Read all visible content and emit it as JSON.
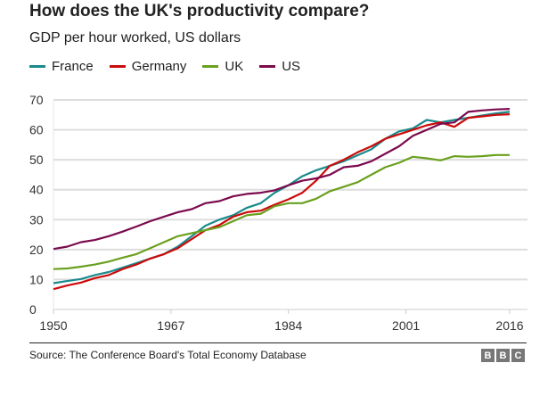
{
  "chart_data": {
    "type": "line",
    "title": "How does the UK's productivity compare?",
    "subtitle": "GDP per hour worked, US dollars",
    "xlabel": "",
    "ylabel": "",
    "xlim": [
      1950,
      2016
    ],
    "ylim": [
      0,
      70
    ],
    "xticks": [
      "1950",
      "1967",
      "1984",
      "2001",
      "2016"
    ],
    "yticks": [
      "0",
      "10",
      "20",
      "30",
      "40",
      "50",
      "60",
      "70"
    ],
    "grid": true,
    "legend": "top-left",
    "x": [
      1950,
      1952,
      1954,
      1956,
      1958,
      1960,
      1962,
      1964,
      1966,
      1968,
      1970,
      1972,
      1974,
      1976,
      1978,
      1980,
      1982,
      1984,
      1986,
      1988,
      1990,
      1992,
      1994,
      1996,
      1998,
      2000,
      2002,
      2004,
      2006,
      2008,
      2010,
      2012,
      2014,
      2016
    ],
    "series": [
      {
        "name": "France",
        "color": "#1a8a8c",
        "values": [
          8.8,
          9.5,
          10.2,
          11.5,
          12.5,
          14,
          15.5,
          17,
          18.5,
          21,
          24.5,
          28,
          30,
          31.5,
          34,
          35.5,
          39,
          41.5,
          44.5,
          46.5,
          48,
          49.5,
          51.5,
          53.5,
          57,
          59.5,
          60.5,
          63.3,
          62.5,
          63.3,
          64,
          64.8,
          65.5,
          66
        ]
      },
      {
        "name": "Germany",
        "color": "#cc0a0a",
        "values": [
          6.8,
          8,
          9,
          10.5,
          11.5,
          13.5,
          15,
          17,
          18.5,
          20.5,
          23.5,
          26.5,
          28.2,
          31,
          32.5,
          33,
          35,
          36.8,
          39,
          43,
          48,
          50,
          52.5,
          54.5,
          57,
          58.5,
          60,
          61.5,
          62.5,
          61,
          64,
          64.5,
          65,
          65.2
        ]
      },
      {
        "name": "UK",
        "color": "#6aa01e",
        "values": [
          13.5,
          13.7,
          14.3,
          15,
          16,
          17.3,
          18.5,
          20.5,
          22.5,
          24.5,
          25.5,
          26.5,
          27.5,
          29.5,
          31.5,
          32,
          34.5,
          35.5,
          35.5,
          37,
          39.5,
          41,
          42.5,
          45,
          47.5,
          49,
          51,
          50.5,
          49.8,
          51.2,
          51,
          51.2,
          51.6,
          51.6
        ]
      },
      {
        "name": "US",
        "color": "#7b0a4e",
        "values": [
          20.2,
          21,
          22.5,
          23.2,
          24.5,
          26,
          27.7,
          29.5,
          31,
          32.5,
          33.5,
          35.5,
          36.2,
          37.8,
          38.6,
          39,
          39.8,
          41.5,
          43,
          43.8,
          45,
          47.5,
          48,
          49.5,
          52,
          54.5,
          58,
          60,
          62,
          62.5,
          66,
          66.5,
          66.8,
          67
        ]
      }
    ]
  },
  "footer": {
    "source": "Source: The Conference Board's Total Economy Database",
    "logo": [
      "B",
      "B",
      "C"
    ]
  }
}
